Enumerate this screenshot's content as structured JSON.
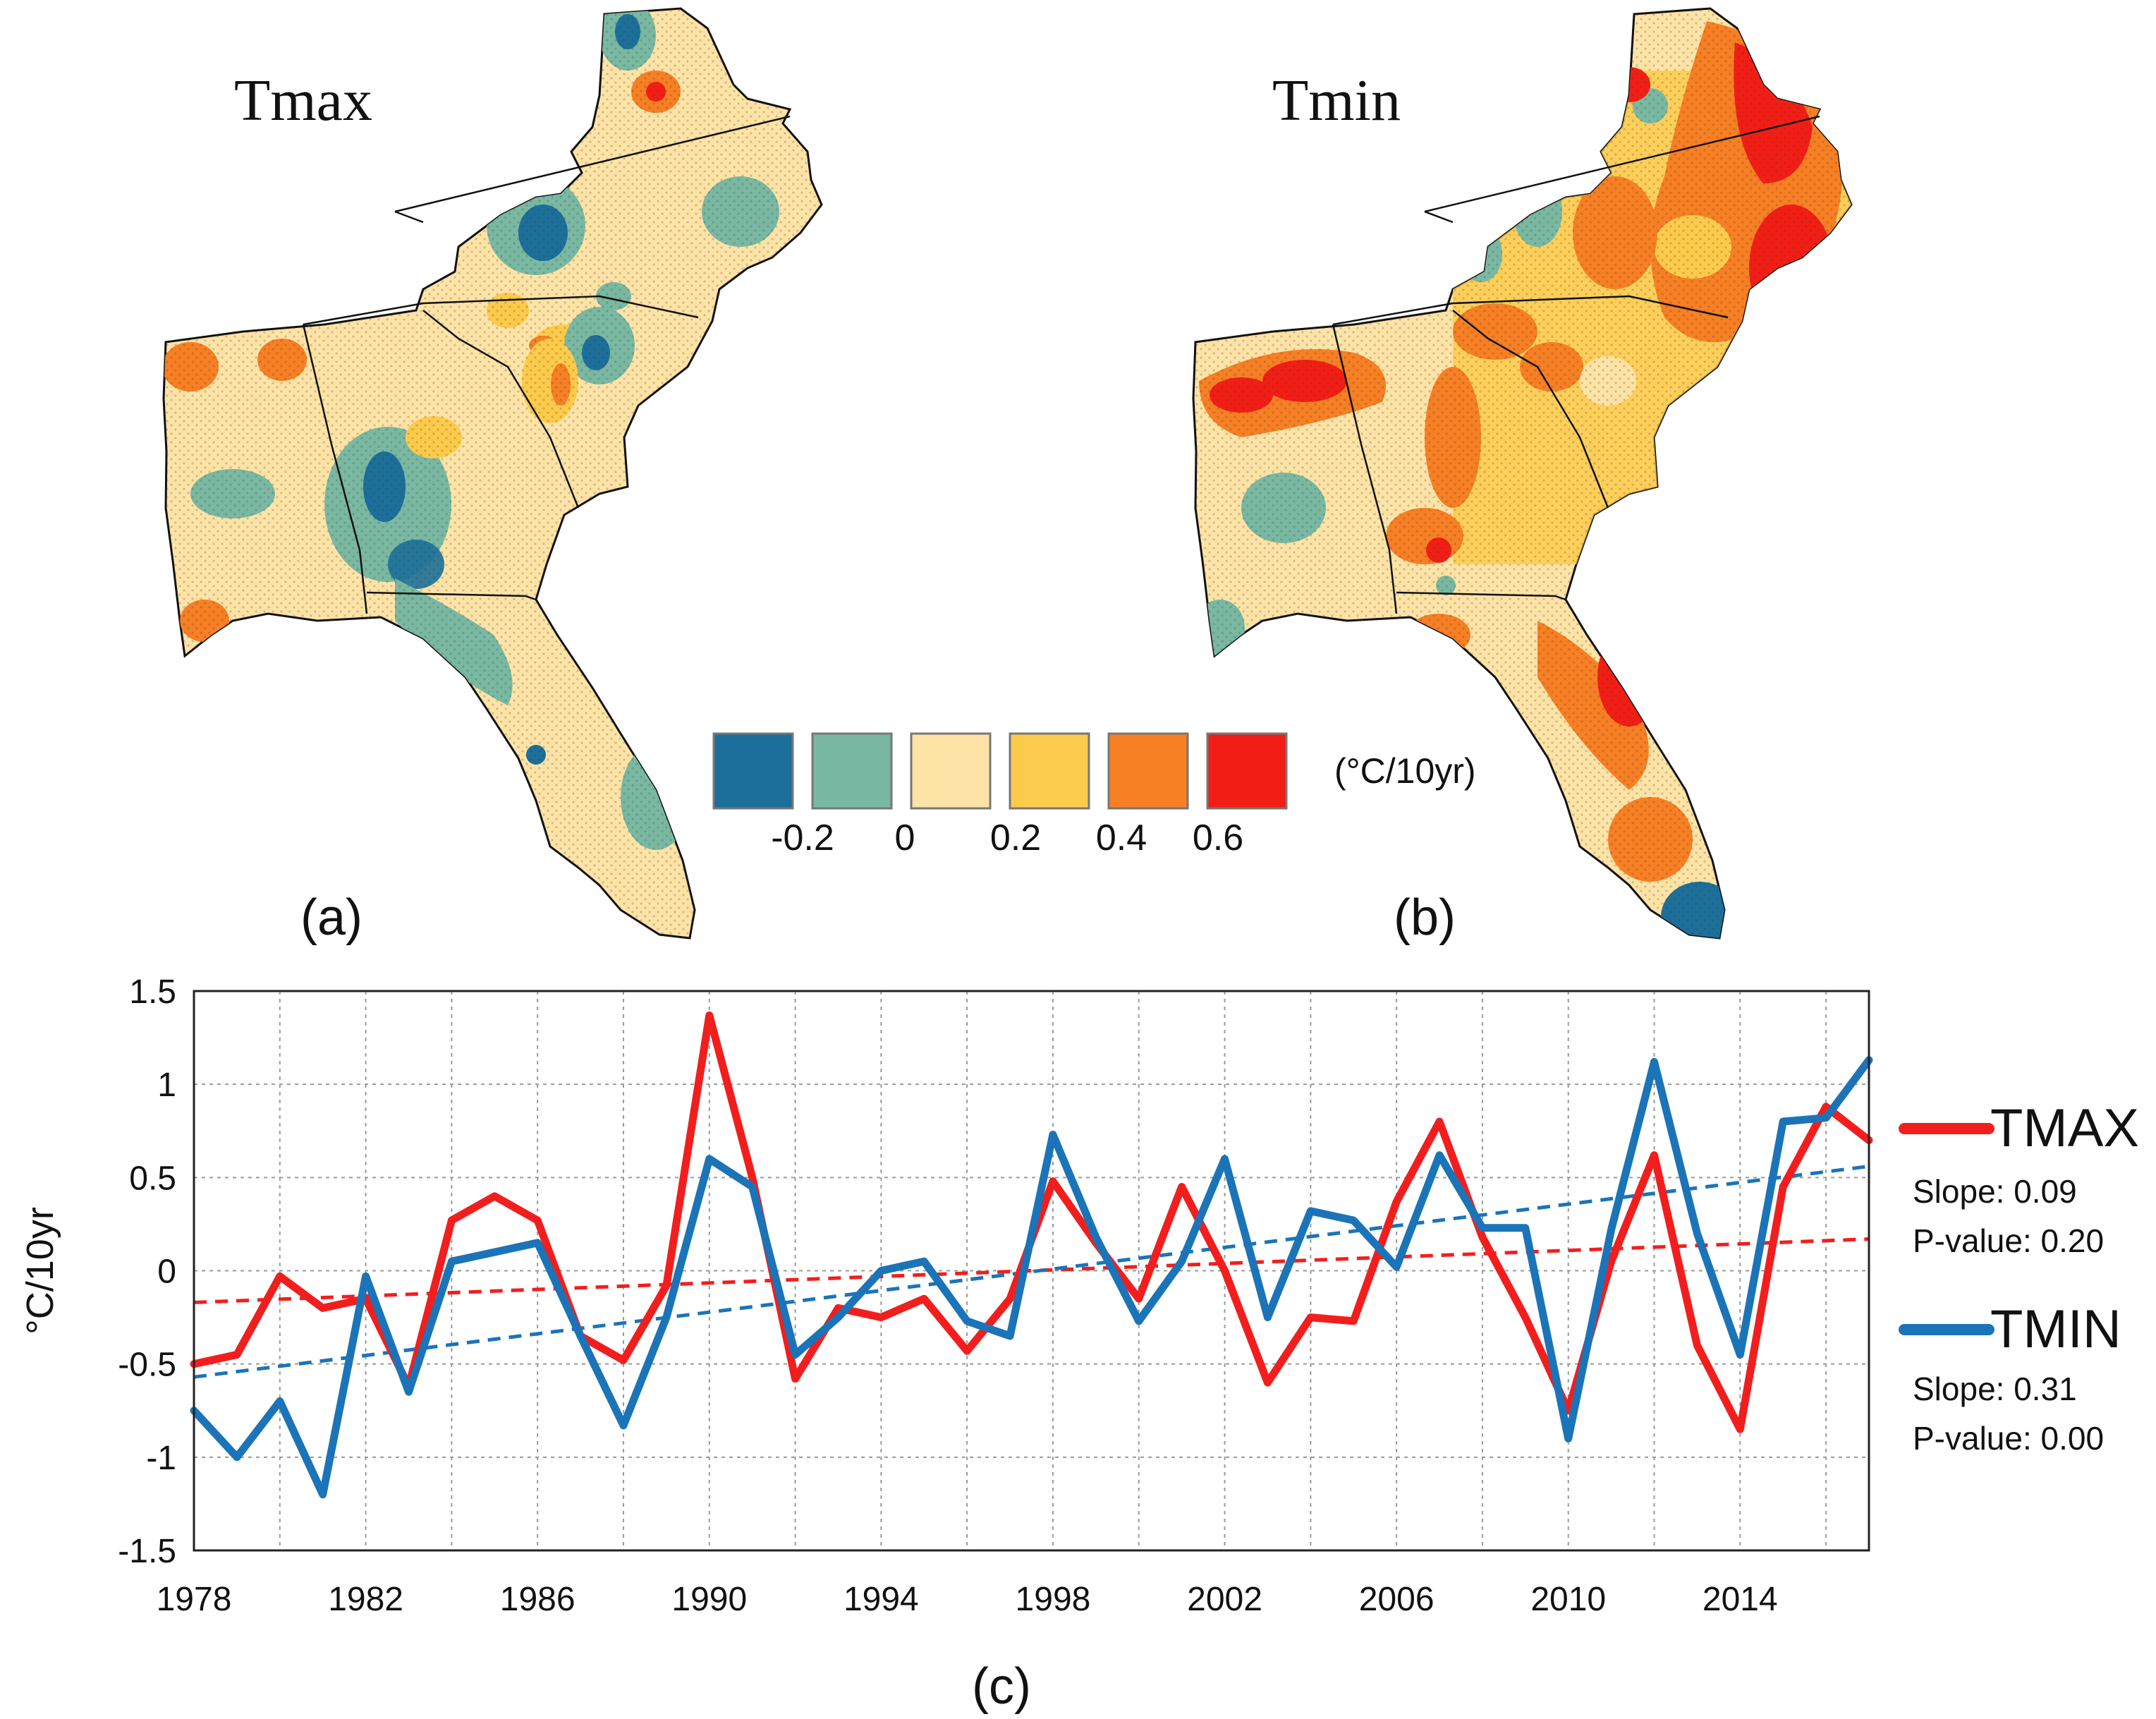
{
  "map_a": {
    "title": "Tmax",
    "panel_label": "(a)"
  },
  "map_b": {
    "title": "Tmin",
    "panel_label": "(b)"
  },
  "colorbar": {
    "unit": "(°C/10yr)",
    "ticks": [
      "-0.2",
      "0",
      "0.2",
      "0.4",
      "0.6"
    ],
    "colors": [
      "#1b6f9a",
      "#79b8a2",
      "#fde3a6",
      "#fdcb4c",
      "#f77f24",
      "#f21e15"
    ]
  },
  "colors": {
    "tmax": "#f21e1e",
    "tmin": "#1b74b8",
    "land_base": "#fde3a6",
    "grid": "#9a9a9a"
  },
  "chart_data": {
    "type": "line",
    "panel_label": "(c)",
    "xlabel": "",
    "ylabel": "°C/10yr",
    "ylim": [
      -1.5,
      1.5
    ],
    "xlim": [
      1978,
      2017
    ],
    "yticks": [
      "-1.5",
      "-1",
      "-0.5",
      "0",
      "0.5",
      "1",
      "1.5"
    ],
    "ytick_values": [
      -1.5,
      -1,
      -0.5,
      0,
      0.5,
      1,
      1.5
    ],
    "xticks": [
      "1978",
      "1982",
      "1986",
      "1990",
      "1994",
      "1998",
      "2002",
      "2006",
      "2010",
      "2014"
    ],
    "xtick_values": [
      1978,
      1982,
      1986,
      1990,
      1994,
      1998,
      2002,
      2006,
      2010,
      2014
    ],
    "grid": true,
    "legend_position": "right",
    "x": [
      1978,
      1979,
      1980,
      1981,
      1982,
      1983,
      1984,
      1985,
      1986,
      1987,
      1988,
      1989,
      1990,
      1991,
      1992,
      1993,
      1994,
      1995,
      1996,
      1997,
      1998,
      1999,
      2000,
      2001,
      2002,
      2003,
      2004,
      2005,
      2006,
      2007,
      2008,
      2009,
      2010,
      2011,
      2012,
      2013,
      2014,
      2015,
      2016,
      2017
    ],
    "series": [
      {
        "name": "TMAX",
        "slope_label": "Slope: 0.09",
        "pvalue_label": "P-value: 0.20",
        "trend": [
          -0.17,
          0.17
        ],
        "values": [
          -0.5,
          -0.45,
          -0.03,
          -0.2,
          -0.15,
          -0.62,
          0.27,
          0.4,
          0.27,
          -0.35,
          -0.48,
          -0.08,
          1.37,
          0.5,
          -0.58,
          -0.2,
          -0.25,
          -0.15,
          -0.43,
          -0.15,
          0.48,
          0.15,
          -0.15,
          0.45,
          0.0,
          -0.6,
          -0.25,
          -0.27,
          0.37,
          0.8,
          0.18,
          -0.25,
          -0.75,
          0.05,
          0.62,
          -0.4,
          -0.85,
          0.45,
          0.88,
          0.7
        ]
      },
      {
        "name": "TMIN",
        "slope_label": "Slope: 0.31",
        "pvalue_label": "P-value: 0.00",
        "trend": [
          -0.57,
          0.56
        ],
        "values": [
          -0.75,
          -1.0,
          -0.7,
          -1.2,
          -0.03,
          -0.65,
          0.05,
          0.1,
          0.15,
          -0.35,
          -0.83,
          -0.25,
          0.6,
          0.45,
          -0.45,
          -0.25,
          0.0,
          0.05,
          -0.27,
          -0.35,
          0.73,
          0.18,
          -0.27,
          0.05,
          0.6,
          -0.25,
          0.32,
          0.27,
          0.02,
          0.62,
          0.23,
          0.23,
          -0.9,
          0.22,
          1.12,
          0.2,
          -0.45,
          0.8,
          0.82,
          1.13
        ]
      }
    ]
  }
}
